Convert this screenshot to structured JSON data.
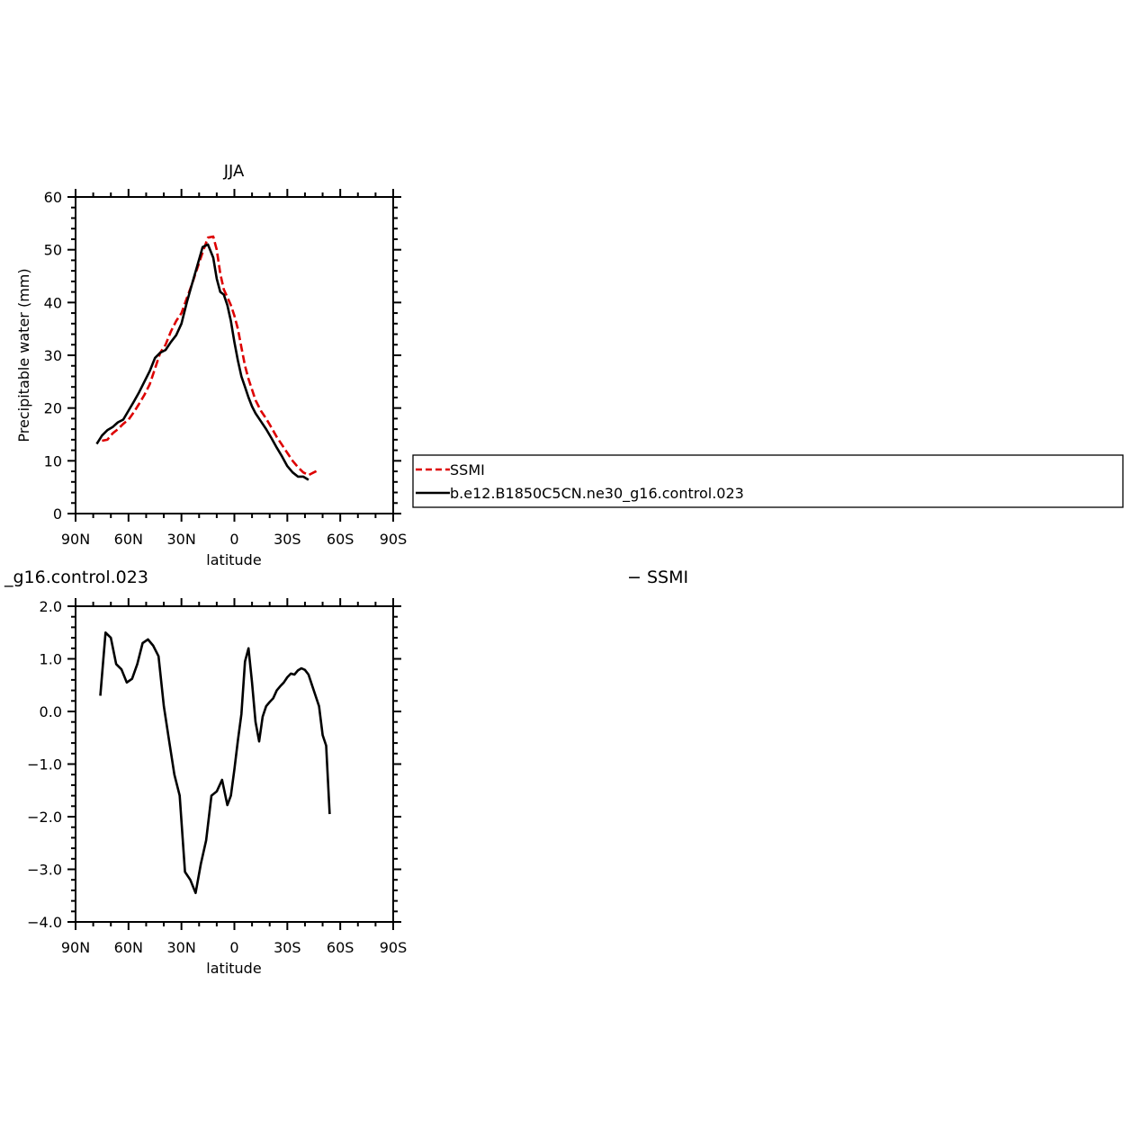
{
  "colors": {
    "ssmi": "#dd0000",
    "model": "#000000",
    "axis": "#000000"
  },
  "legend": {
    "placement": "right of top panel",
    "entries": [
      "SSMI",
      "b.e12.B1850C5CN.ne30_g16.control.023"
    ]
  },
  "chart_data": [
    {
      "type": "line",
      "title": "JJA",
      "xlabel": "latitude",
      "ylabel": "Precipitable water (mm)",
      "xlim": [
        90,
        -90
      ],
      "ylim": [
        0,
        60
      ],
      "xticks": [
        90,
        60,
        30,
        0,
        -30,
        -60,
        -90
      ],
      "xtick_labels": [
        "90N",
        "60N",
        "30N",
        "0",
        "30S",
        "60S",
        "90S"
      ],
      "yticks": [
        0,
        10,
        20,
        30,
        40,
        50,
        60
      ],
      "ytick_labels": [
        "0",
        "10",
        "20",
        "30",
        "40",
        "50",
        "60"
      ],
      "series": [
        {
          "name": "SSMI",
          "style": "dashed",
          "x": [
            75,
            72,
            69,
            66,
            63,
            60,
            57,
            54,
            51,
            48,
            45,
            42,
            39,
            36,
            33,
            30,
            27,
            24,
            21,
            18,
            15,
            12,
            10,
            8,
            6,
            4,
            2,
            0,
            -2,
            -4,
            -6,
            -8,
            -10,
            -12,
            -15,
            -18,
            -21,
            -24,
            -27,
            -30,
            -33,
            -36,
            -39,
            -42,
            -45,
            -48,
            -51,
            -54,
            -57,
            -60,
            -63,
            -66
          ],
          "y": [
            13.8,
            14.0,
            15.2,
            16.0,
            17.0,
            17.8,
            19.2,
            20.8,
            22.5,
            24.5,
            27.5,
            30.5,
            32.0,
            34.5,
            36.5,
            38.0,
            40.8,
            43.5,
            46.5,
            49.5,
            52.3,
            52.5,
            50.0,
            45.5,
            42.5,
            41.0,
            39.5,
            37.5,
            35.0,
            31.5,
            28.0,
            25.5,
            23.5,
            21.5,
            19.5,
            18.0,
            16.3,
            14.5,
            13.0,
            11.5,
            10.0,
            8.8,
            7.8,
            7.3,
            7.8,
            8.3,
            null,
            null,
            null,
            null,
            null,
            null
          ]
        },
        {
          "name": "b.e12.B1850C5CN.ne30_g16.control.023",
          "style": "solid",
          "x": [
            78,
            75,
            72,
            69,
            66,
            63,
            60,
            57,
            54,
            51,
            48,
            45,
            42,
            39,
            36,
            33,
            30,
            27,
            24,
            21,
            18,
            15,
            12,
            10,
            8,
            6,
            4,
            2,
            0,
            -2,
            -4,
            -6,
            -8,
            -10,
            -12,
            -15,
            -18,
            -21,
            -24,
            -27,
            -30,
            -33,
            -36,
            -39,
            -42,
            -45,
            -48,
            -51,
            -54,
            -57,
            -60,
            -63,
            -66
          ],
          "y": [
            13.2,
            14.8,
            15.8,
            16.4,
            17.3,
            17.8,
            19.5,
            21.2,
            23.0,
            25.0,
            27.0,
            29.5,
            30.5,
            31.0,
            32.5,
            33.8,
            36.0,
            40.0,
            43.5,
            47.0,
            50.5,
            51.0,
            48.5,
            44.5,
            42.0,
            41.5,
            39.5,
            36.5,
            32.5,
            29.0,
            26.0,
            24.0,
            22.0,
            20.3,
            19.0,
            17.5,
            16.0,
            14.3,
            12.5,
            10.8,
            9.0,
            7.8,
            7.0,
            7.0,
            6.4,
            null,
            null,
            null,
            null,
            null,
            null,
            null,
            null
          ]
        }
      ]
    },
    {
      "type": "line",
      "title": "_g16.control.023",
      "subtitle_right": "− SSMI",
      "xlabel": "latitude",
      "ylabel": "Precipitable water (mm)",
      "xlim": [
        90,
        -90
      ],
      "ylim": [
        -4.0,
        2.0
      ],
      "xticks": [
        90,
        60,
        30,
        0,
        -30,
        -60,
        -90
      ],
      "xtick_labels": [
        "90N",
        "60N",
        "30N",
        "0",
        "30S",
        "60S",
        "90S"
      ],
      "yticks": [
        2,
        1,
        0,
        -1,
        -2,
        -3,
        -4
      ],
      "ytick_labels": [
        "2.0",
        "1.0",
        "0.0",
        "−1.0",
        "−2.0",
        "−3.0",
        "−4.0"
      ],
      "series": [
        {
          "name": "",
          "style": "solid",
          "x": [
            76,
            73,
            70,
            67,
            64,
            61,
            58,
            55,
            52,
            49,
            46,
            43,
            40,
            37,
            34,
            31,
            28,
            25,
            22,
            19,
            16,
            13,
            10,
            7,
            4,
            2,
            0,
            -2,
            -4,
            -6,
            -8,
            -10,
            -12,
            -14,
            -16,
            -18,
            -20,
            -22,
            -24,
            -26,
            -28,
            -30,
            -32,
            -34,
            -36,
            -38,
            -40,
            -42,
            -44,
            -46,
            -48,
            -50,
            -52,
            -54,
            -56,
            -58,
            -60,
            -62,
            -64,
            -66
          ],
          "y": [
            0.3,
            1.5,
            1.4,
            0.9,
            0.8,
            0.55,
            0.62,
            0.9,
            1.3,
            1.37,
            1.25,
            1.05,
            0.1,
            -0.55,
            -1.2,
            -1.6,
            -3.05,
            -3.2,
            -3.45,
            -2.9,
            -2.45,
            -1.6,
            -1.52,
            -1.3,
            -1.78,
            -1.6,
            -1.1,
            -0.55,
            -0.05,
            0.95,
            1.2,
            0.55,
            -0.2,
            -0.57,
            -0.1,
            0.1,
            0.18,
            0.25,
            0.4,
            0.48,
            0.55,
            0.65,
            0.72,
            0.7,
            0.78,
            0.82,
            0.79,
            0.7,
            0.5,
            0.3,
            0.1,
            -0.45,
            -0.65,
            -1.95,
            null,
            null,
            null,
            null,
            null,
            null
          ]
        }
      ]
    }
  ]
}
